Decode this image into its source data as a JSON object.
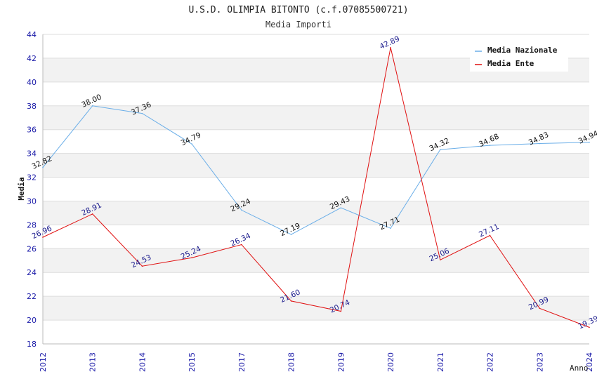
{
  "chart_data": {
    "type": "line",
    "title": "U.S.D. OLIMPIA BITONTO (c.f.07085500721)",
    "subtitle": "Media Importi",
    "ylabel": "Media",
    "xlabel": "Anno",
    "ylim": [
      18,
      44
    ],
    "yticks": [
      18,
      20,
      22,
      24,
      26,
      28,
      30,
      32,
      34,
      36,
      38,
      40,
      42,
      44
    ],
    "categories": [
      "2012",
      "2013",
      "2014",
      "2015",
      "2017",
      "2018",
      "2019",
      "2020",
      "2021",
      "2022",
      "2023",
      "2024"
    ],
    "series": [
      {
        "name": "Media Nazionale",
        "color": "#6aaee8",
        "label_color": "#111111",
        "values": [
          32.82,
          38.0,
          37.36,
          34.79,
          29.24,
          27.19,
          29.43,
          27.71,
          34.32,
          34.68,
          34.83,
          34.94
        ],
        "labels": [
          "32.82",
          "38.00",
          "37.36",
          "34.79",
          "29.24",
          "27.19",
          "29.43",
          "27.71",
          "34.32",
          "34.68",
          "34.83",
          "34.94"
        ]
      },
      {
        "name": "Media Ente",
        "color": "#e01010",
        "label_color": "#1a1a8c",
        "values": [
          26.96,
          28.91,
          24.53,
          25.24,
          26.34,
          21.6,
          20.74,
          42.89,
          25.06,
          27.11,
          20.99,
          19.39
        ],
        "labels": [
          "26.96",
          "28.91",
          "24.53",
          "25.24",
          "26.34",
          "21.60",
          "20.74",
          "42.89",
          "25.06",
          "27.11",
          "20.99",
          "19.39"
        ]
      }
    ],
    "grid": true,
    "legend": "top-right"
  }
}
